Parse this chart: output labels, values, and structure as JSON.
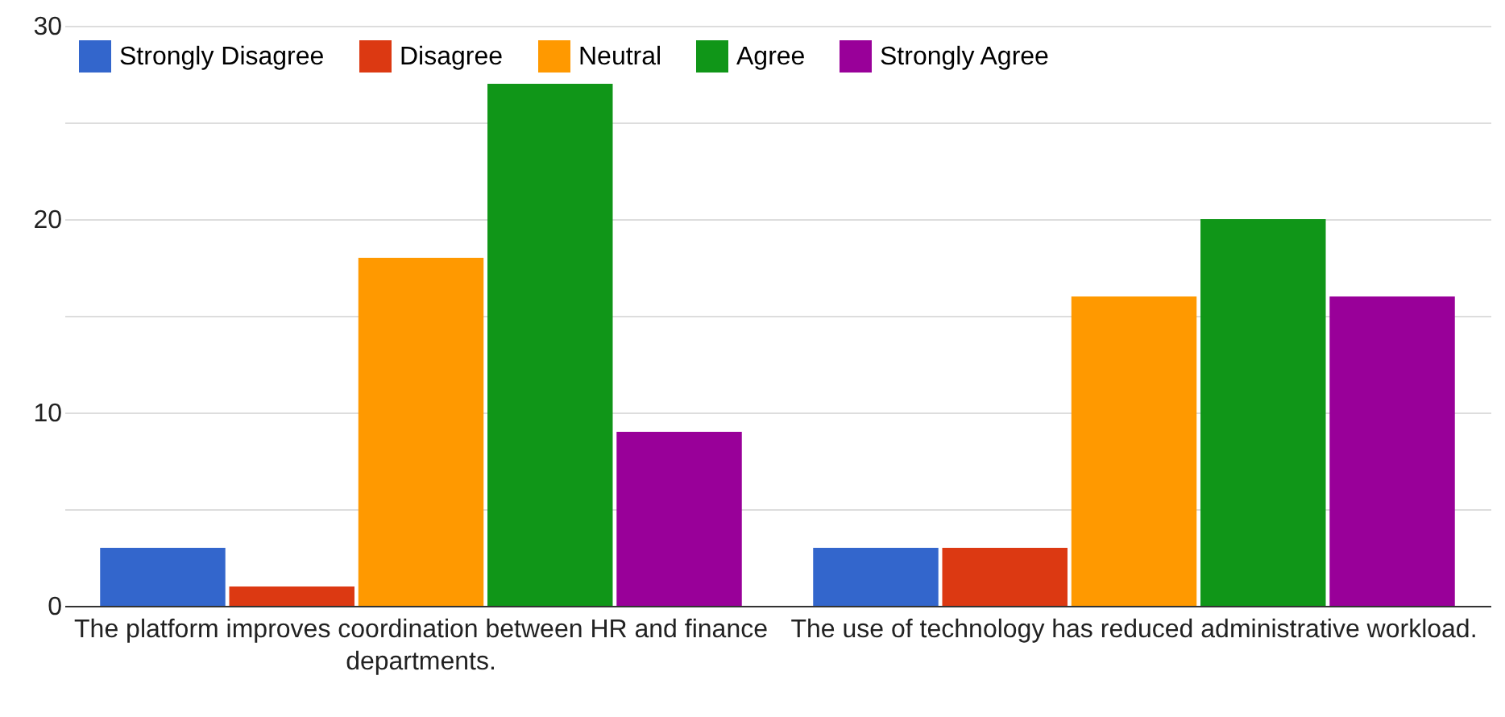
{
  "chart_data": {
    "type": "bar",
    "categories": [
      "The platform improves coordination between HR and finance departments.",
      "The use of technology has reduced administrative workload."
    ],
    "series": [
      {
        "name": "Strongly Disagree",
        "color": "#3366cc",
        "values": [
          3,
          3
        ]
      },
      {
        "name": "Disagree",
        "color": "#dc3912",
        "values": [
          1,
          3
        ]
      },
      {
        "name": "Neutral",
        "color": "#ff9900",
        "values": [
          18,
          16
        ]
      },
      {
        "name": "Agree",
        "color": "#109618",
        "values": [
          27,
          20
        ]
      },
      {
        "name": "Strongly Agree",
        "color": "#990099",
        "values": [
          9,
          16
        ]
      }
    ],
    "ylim": [
      0,
      30
    ],
    "yticks": [
      0,
      {
        "value": 5,
        "label": null
      },
      10,
      {
        "value": 15,
        "label": null
      },
      20,
      {
        "value": 25,
        "label": null
      },
      30
    ],
    "grid": "y",
    "legend": "top left"
  }
}
